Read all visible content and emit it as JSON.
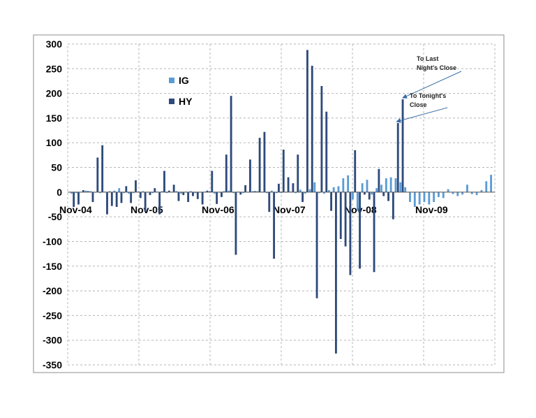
{
  "chart_data": {
    "type": "bar",
    "title": "",
    "xlabel": "",
    "ylabel": "",
    "ylim": [
      -350,
      300
    ],
    "y_ticks": [
      300,
      250,
      200,
      150,
      100,
      50,
      0,
      -50,
      -100,
      -150,
      -200,
      -250,
      -300,
      -350
    ],
    "x_tick_labels": [
      "Nov-04",
      "Nov-05",
      "Nov-06",
      "Nov-07",
      "Nov-08",
      "Nov-09"
    ],
    "grid": true,
    "legend_position": "upper-left",
    "colors": {
      "IG": "#5b9bd5",
      "HY": "#2e4a7a"
    },
    "series": [
      {
        "name": "IG",
        "values": [
          -3,
          -2,
          -1,
          3,
          2,
          -1,
          -2,
          1,
          2,
          3,
          8,
          -2,
          -3,
          -2,
          1,
          2,
          -1,
          -2,
          1,
          2,
          -2,
          -1,
          2,
          -3,
          1,
          2,
          -2,
          -1,
          1,
          2,
          -3,
          -1,
          2,
          3,
          -2,
          1,
          -2,
          -1,
          2,
          2,
          -1,
          -2,
          3,
          -2,
          -2,
          -1,
          1,
          -2,
          5,
          -3,
          6,
          20,
          -2,
          -3,
          4,
          10,
          12,
          28,
          34,
          -15,
          -38,
          18,
          25,
          -5,
          8,
          15,
          28,
          30,
          28,
          20,
          10,
          -20,
          -30,
          -25,
          -20,
          -25,
          -20,
          -10,
          -12,
          6,
          -4,
          -8,
          -5,
          15,
          -4,
          -6,
          4,
          22,
          35
        ]
      },
      {
        "name": "HY",
        "values": [
          -30,
          -25,
          4,
          2,
          -20,
          70,
          95,
          -45,
          -28,
          -30,
          -22,
          12,
          -22,
          24,
          -12,
          -40,
          -6,
          8,
          -45,
          43,
          3,
          15,
          -18,
          -6,
          -20,
          -8,
          -14,
          -25,
          3,
          43,
          -24,
          -10,
          76,
          195,
          -127,
          -5,
          14,
          66,
          2,
          110,
          122,
          -40,
          -135,
          17,
          86,
          30,
          18,
          76,
          -20,
          288,
          256,
          -215,
          215,
          163,
          -38,
          -327,
          -95,
          -110,
          -168,
          85,
          -155,
          -5,
          -15,
          -162,
          47,
          -8,
          -18,
          -55,
          140,
          188
        ]
      }
    ],
    "annotations": [
      {
        "lines": [
          "To Last",
          "Night's Close"
        ],
        "points_to": "last HY bar"
      },
      {
        "lines": [
          "To Tonight's",
          "Close"
        ],
        "points_to": "second-to-last HY bar"
      }
    ]
  }
}
